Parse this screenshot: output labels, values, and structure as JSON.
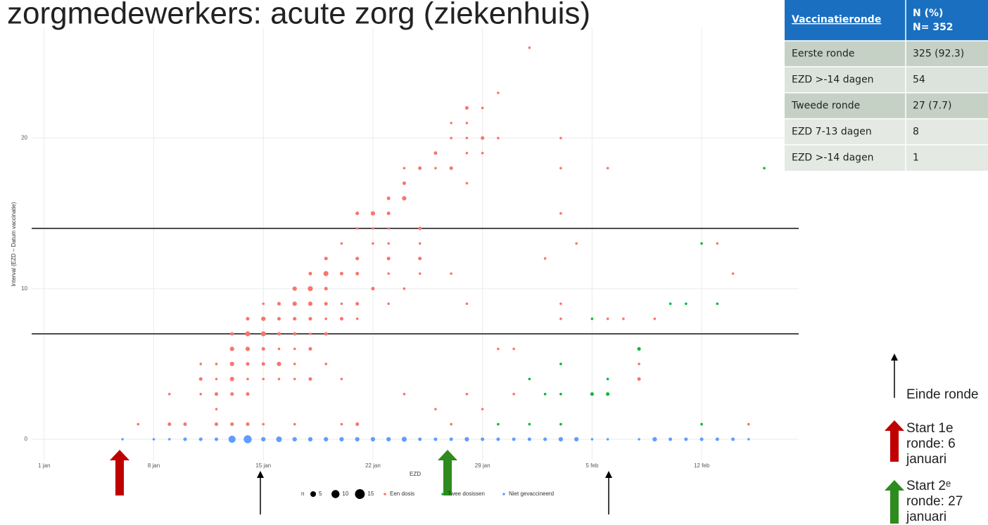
{
  "chart_data": {
    "type": "scatter",
    "title": "zorgmedewerkers: acute zorg (ziekenhuis)",
    "x_label": "EZD",
    "y_label": "Interval (EZD – Datum vaccinatie)",
    "xlim": [
      0.2,
      49.2
    ],
    "ylim": [
      -1.4,
      27.3
    ],
    "xticks": [
      {
        "value": 1,
        "label": "1 jan"
      },
      {
        "value": 8,
        "label": "8 jan"
      },
      {
        "value": 15,
        "label": "15 jan"
      },
      {
        "value": 22,
        "label": "22 jan"
      },
      {
        "value": 29,
        "label": "29 jan"
      },
      {
        "value": 36,
        "label": "5 feb"
      },
      {
        "value": 43,
        "label": "12 feb"
      }
    ],
    "yticks": [
      0,
      10,
      20
    ],
    "grid": true,
    "hlines": [
      7,
      14
    ],
    "size_legend": {
      "title": "n",
      "sizes": [
        5,
        10,
        15
      ]
    },
    "series": [
      {
        "name": "Een dosis",
        "color": "#F8766D",
        "x": [
          7,
          9,
          9,
          10,
          11,
          11,
          11,
          11,
          12,
          12,
          12,
          12,
          12,
          13,
          13,
          13,
          13,
          13,
          13,
          14,
          14,
          14,
          14,
          14,
          14,
          14,
          15,
          15,
          15,
          15,
          15,
          15,
          15,
          16,
          16,
          16,
          16,
          16,
          16,
          17,
          17,
          17,
          17,
          17,
          17,
          17,
          17,
          18,
          18,
          18,
          18,
          18,
          18,
          18,
          19,
          19,
          19,
          19,
          19,
          19,
          19,
          20,
          20,
          20,
          20,
          20,
          20,
          21,
          21,
          21,
          21,
          21,
          21,
          21,
          22,
          22,
          22,
          22,
          23,
          23,
          23,
          23,
          23,
          23,
          23,
          24,
          24,
          24,
          24,
          24,
          25,
          25,
          25,
          25,
          25,
          26,
          26,
          26,
          27,
          27,
          27,
          27,
          27,
          28,
          28,
          28,
          28,
          28,
          28,
          28,
          29,
          29,
          29,
          29,
          30,
          30,
          30,
          31,
          31,
          32,
          33,
          34,
          34,
          34,
          34,
          34,
          35,
          37,
          37,
          38,
          39,
          39,
          40,
          44,
          45,
          46
        ],
        "values": [
          1,
          1,
          3,
          1,
          4,
          3,
          5,
          0,
          5,
          4,
          3,
          2,
          1,
          7,
          6,
          5,
          4,
          3,
          1,
          8,
          7,
          6,
          5,
          4,
          3,
          1,
          9,
          8,
          7,
          6,
          5,
          4,
          1,
          9,
          8,
          7,
          6,
          5,
          4,
          10,
          9,
          8,
          7,
          6,
          5,
          4,
          1,
          11,
          10,
          9,
          8,
          7,
          6,
          4,
          12,
          11,
          10,
          9,
          8,
          7,
          5,
          13,
          11,
          9,
          8,
          4,
          1,
          15,
          14,
          12,
          11,
          9,
          8,
          1,
          15,
          14,
          13,
          10,
          16,
          15,
          14,
          13,
          12,
          11,
          9,
          18,
          17,
          16,
          10,
          3,
          18,
          14,
          13,
          12,
          11,
          19,
          18,
          2,
          21,
          20,
          18,
          11,
          1,
          22,
          21,
          20,
          19,
          17,
          9,
          3,
          22,
          20,
          19,
          2,
          23,
          20,
          6,
          6,
          3,
          26,
          12,
          20,
          18,
          15,
          9,
          8,
          13,
          18,
          8,
          8,
          5,
          4,
          8,
          13,
          11,
          1
        ],
        "sizes": [
          1,
          2,
          1,
          2,
          2,
          1,
          1,
          1,
          1,
          1,
          2,
          1,
          2,
          2,
          3,
          3,
          3,
          2,
          2,
          2,
          4,
          3,
          2,
          1,
          2,
          2,
          1,
          3,
          4,
          2,
          2,
          1,
          1,
          2,
          2,
          2,
          1,
          3,
          1,
          3,
          3,
          2,
          2,
          1,
          1,
          1,
          1,
          2,
          4,
          3,
          2,
          1,
          2,
          2,
          2,
          4,
          2,
          2,
          1,
          2,
          1,
          1,
          2,
          1,
          2,
          1,
          1,
          2,
          1,
          2,
          2,
          2,
          1,
          2,
          3,
          1,
          1,
          2,
          2,
          2,
          1,
          1,
          2,
          1,
          1,
          1,
          2,
          3,
          1,
          1,
          2,
          2,
          1,
          2,
          1,
          2,
          1,
          1,
          1,
          1,
          2,
          1,
          1,
          2,
          1,
          1,
          1,
          1,
          1,
          1,
          1,
          2,
          1,
          1,
          1,
          1,
          1,
          1,
          1,
          1,
          1,
          1,
          1,
          1,
          1,
          1,
          1,
          1,
          1,
          1,
          1,
          2,
          1,
          1,
          1,
          1
        ]
      },
      {
        "name": "Twee dosissen",
        "color": "#00BA38",
        "x": [
          30,
          32,
          32,
          33,
          34,
          34,
          34,
          36,
          36,
          37,
          37,
          39,
          41,
          42,
          43,
          43,
          44,
          47
        ],
        "values": [
          1,
          4,
          1,
          3,
          5,
          3,
          1,
          8,
          3,
          4,
          3,
          6,
          9,
          9,
          13,
          1,
          9,
          18
        ],
        "sizes": [
          1,
          1,
          1,
          1,
          1,
          1,
          1,
          1,
          2,
          1,
          2,
          2,
          1,
          1,
          1,
          1,
          1,
          1
        ]
      },
      {
        "name": "Niet gevaccineerd",
        "color": "#619CFF",
        "x": [
          6,
          8,
          9,
          10,
          11,
          12,
          13,
          14,
          15,
          16,
          17,
          18,
          19,
          20,
          21,
          22,
          23,
          24,
          25,
          26,
          27,
          28,
          29,
          30,
          31,
          32,
          33,
          34,
          35,
          36,
          37,
          39,
          40,
          41,
          42,
          43,
          44,
          45,
          46
        ],
        "values": [
          0,
          0,
          0,
          0,
          0,
          0,
          0,
          0,
          0,
          0,
          0,
          0,
          0,
          0,
          0,
          0,
          0,
          0,
          0,
          0,
          0,
          0,
          0,
          0,
          0,
          0,
          0,
          0,
          0,
          0,
          0,
          0,
          0,
          0,
          0,
          0,
          0,
          0,
          0
        ],
        "sizes": [
          1,
          1,
          1,
          2,
          2,
          2,
          8,
          10,
          3,
          5,
          3,
          3,
          3,
          3,
          3,
          3,
          3,
          4,
          2,
          2,
          2,
          3,
          2,
          2,
          2,
          2,
          2,
          3,
          3,
          1,
          1,
          1,
          3,
          2,
          2,
          2,
          2,
          2,
          1
        ]
      }
    ]
  },
  "table": {
    "header": [
      "Vaccinatieronde",
      [
        "N (%)",
        "N= 352"
      ]
    ],
    "rows": [
      [
        "Eerste ronde",
        "325 (92.3)"
      ],
      [
        "EZD >-14 dagen",
        "54"
      ],
      [
        "Tweede ronde",
        "27 (7.7)"
      ],
      [
        "EZD 7-13 dagen",
        "8"
      ],
      [
        "EZD >-14 dagen",
        "1"
      ]
    ]
  },
  "annotations": [
    [
      "Einde ronde"
    ],
    [
      "Start 1e",
      "ronde: 6",
      "januari"
    ],
    [
      "Start 2ᵉ",
      "ronde: 27",
      "januari"
    ]
  ]
}
